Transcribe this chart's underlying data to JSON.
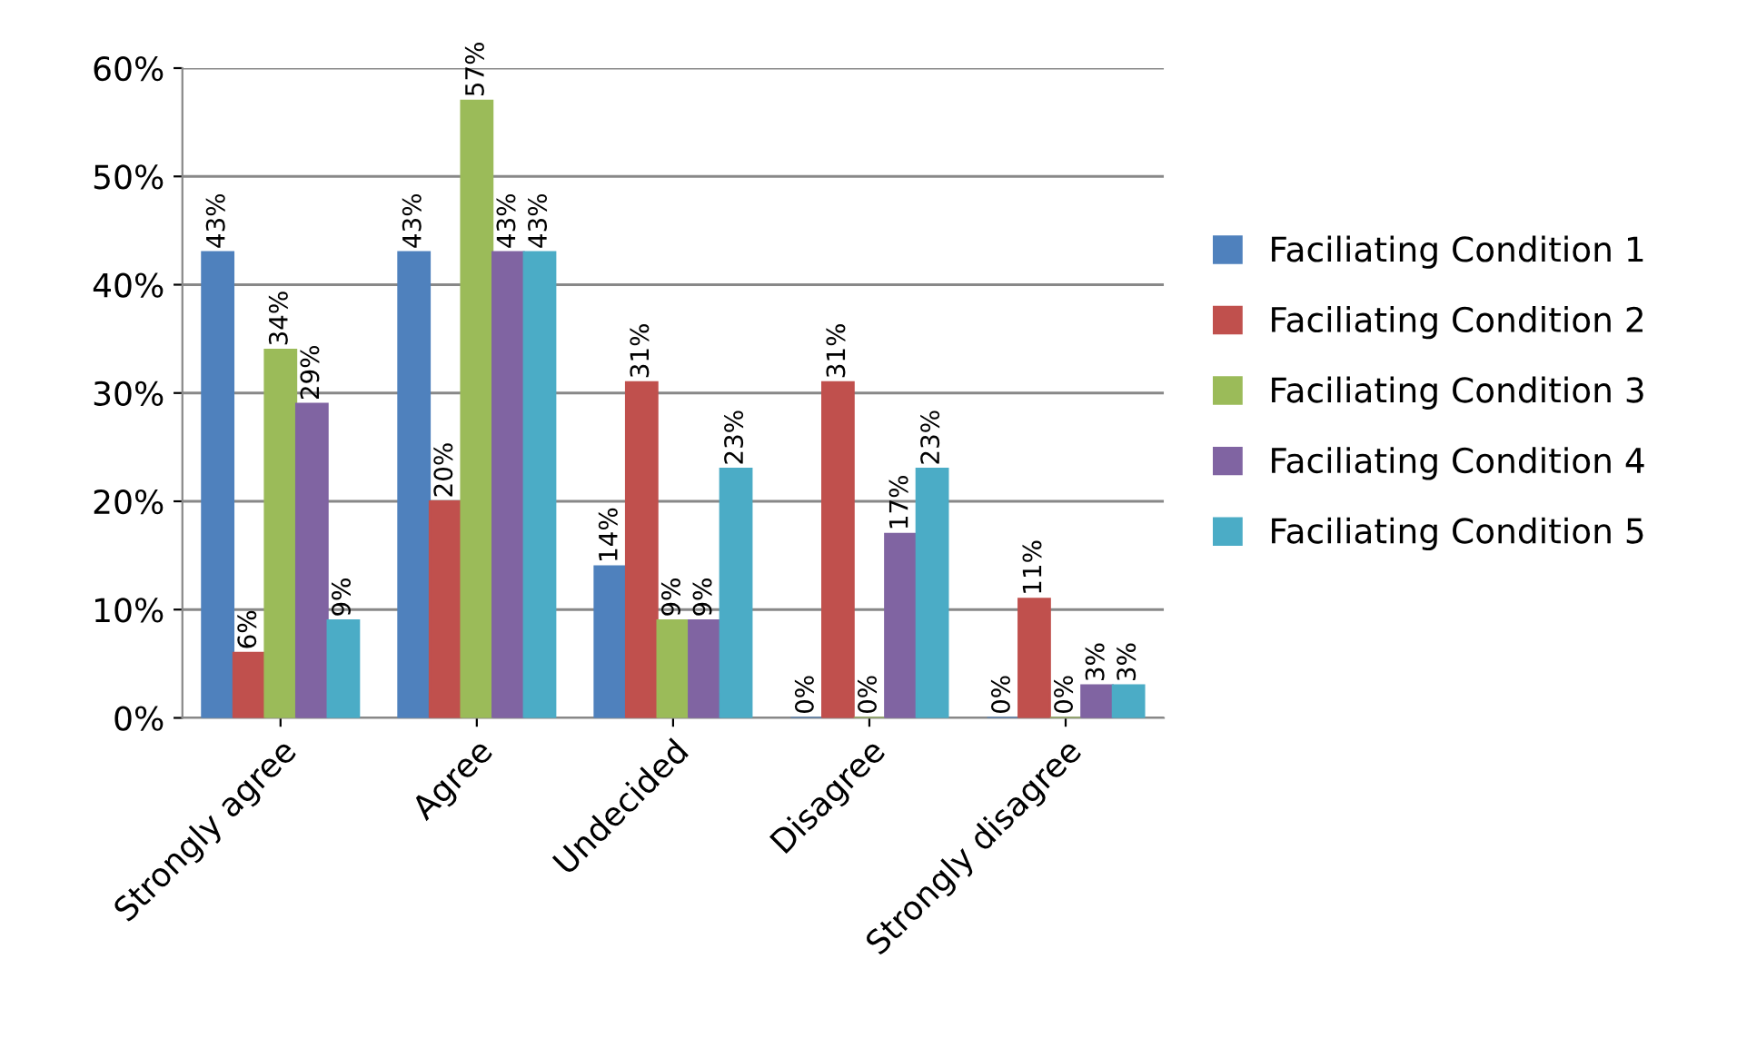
{
  "chart_data": {
    "type": "bar",
    "categories": [
      "Strongly agree",
      "Agree",
      "Undecided",
      "Disagree",
      "Strongly disagree"
    ],
    "series": [
      {
        "name": "Faciliating Condition 1",
        "color": "#4f81bd",
        "values": [
          43,
          43,
          14,
          0,
          0
        ],
        "value_labels": [
          "43%",
          "43%",
          "14%",
          "0%",
          "0%"
        ]
      },
      {
        "name": "Faciliating Condition 2",
        "color": "#c0504d",
        "values": [
          6,
          20,
          31,
          31,
          11
        ],
        "value_labels": [
          "6%",
          "20%",
          "31%",
          "31%",
          "11%"
        ]
      },
      {
        "name": "Faciliating Condition 3",
        "color": "#9bbb59",
        "values": [
          34,
          57,
          9,
          0,
          0
        ],
        "value_labels": [
          "34%",
          "57%",
          "9%",
          "0%",
          "0%"
        ]
      },
      {
        "name": "Faciliating Condition 4",
        "color": "#8064a2",
        "values": [
          29,
          43,
          9,
          17,
          3
        ],
        "value_labels": [
          "29%",
          "43%",
          "9%",
          "17%",
          "3%"
        ]
      },
      {
        "name": "Faciliating Condition 5",
        "color": "#4bacc6",
        "values": [
          9,
          43,
          23,
          23,
          3
        ],
        "value_labels": [
          "9%",
          "43%",
          "23%",
          "23%",
          "3%"
        ]
      }
    ],
    "ylim": [
      0,
      60
    ],
    "yticks": [
      {
        "value": 0,
        "label": "0%"
      },
      {
        "value": 10,
        "label": "10%"
      },
      {
        "value": 20,
        "label": "20%"
      },
      {
        "value": 30,
        "label": "30%"
      },
      {
        "value": 40,
        "label": "40%"
      },
      {
        "value": 50,
        "label": "50%"
      },
      {
        "value": 60,
        "label": "60%"
      }
    ],
    "grid": "y",
    "legend": "right"
  }
}
